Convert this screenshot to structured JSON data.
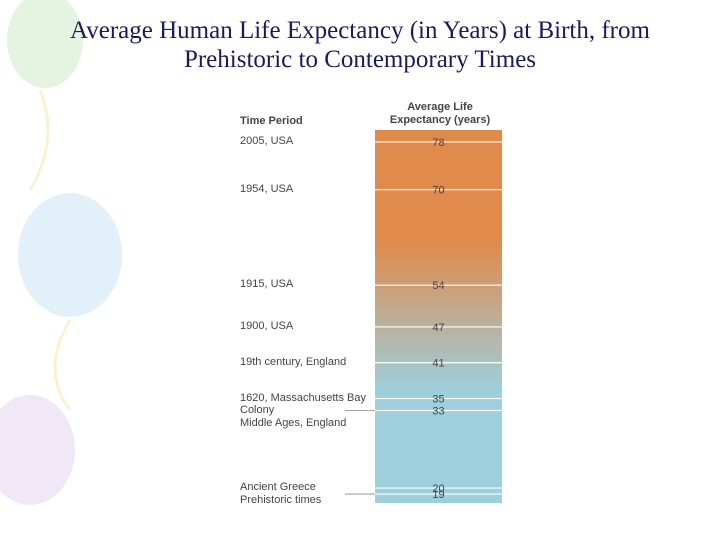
{
  "chart_data": {
    "type": "scale",
    "title": "Average Human Life Expectancy (in Years) at Birth, from Prehistoric to Contemporary Times",
    "category_header": "Time Period",
    "value_header": "Average Life Expectancy (years)",
    "categories": [
      "2005, USA",
      "1954, USA",
      "1915, USA",
      "1900, USA",
      "19th century, England",
      "1620, Massachusetts Bay Colony",
      "Middle Ages, England",
      "Ancient Greece",
      "Prehistoric times"
    ],
    "values": [
      78,
      70,
      54,
      47,
      41,
      35,
      33,
      20,
      19
    ],
    "ylim": [
      17.5,
      80
    ],
    "colors": [
      "#e08a4c",
      "#9dcfdc"
    ]
  }
}
